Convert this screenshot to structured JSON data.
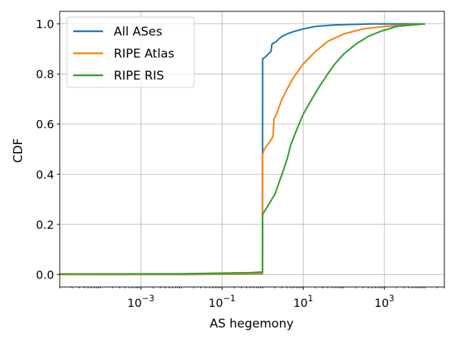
{
  "chart_data": {
    "type": "line",
    "xlabel": "AS hegemony",
    "ylabel": "CDF",
    "xscale": "log",
    "xlim": [
      1e-05,
      30000
    ],
    "ylim": [
      -0.05,
      1.05
    ],
    "x_ticks": [
      {
        "value": 0.001,
        "base": "10",
        "exp": "−3"
      },
      {
        "value": 0.1,
        "base": "10",
        "exp": "−1"
      },
      {
        "value": 10,
        "base": "10",
        "exp": "1"
      },
      {
        "value": 1000,
        "base": "10",
        "exp": "3"
      }
    ],
    "y_ticks": [
      {
        "value": 0.0,
        "label": "0.0"
      },
      {
        "value": 0.2,
        "label": "0.2"
      },
      {
        "value": 0.4,
        "label": "0.4"
      },
      {
        "value": 0.6,
        "label": "0.6"
      },
      {
        "value": 0.8,
        "label": "0.8"
      },
      {
        "value": 1.0,
        "label": "1.0"
      }
    ],
    "grid": true,
    "legend_position": "top-left",
    "series": [
      {
        "name": "All ASes",
        "color": "#1f77b4",
        "points": [
          [
            1e-05,
            0.0
          ],
          [
            0.01,
            0.0
          ],
          [
            0.5,
            0.002
          ],
          [
            0.99,
            0.003
          ],
          [
            1.0,
            0.86
          ],
          [
            1.2,
            0.87
          ],
          [
            1.6,
            0.89
          ],
          [
            1.7,
            0.92
          ],
          [
            2.2,
            0.93
          ],
          [
            2.5,
            0.94
          ],
          [
            3,
            0.95
          ],
          [
            4,
            0.96
          ],
          [
            6,
            0.97
          ],
          [
            10,
            0.98
          ],
          [
            20,
            0.99
          ],
          [
            50,
            0.995
          ],
          [
            150,
            0.998
          ],
          [
            500,
            1.0
          ],
          [
            10000,
            1.0
          ]
        ]
      },
      {
        "name": "RIPE Atlas",
        "color": "#ff7f0e",
        "points": [
          [
            1e-05,
            0.0
          ],
          [
            0.01,
            0.001
          ],
          [
            0.5,
            0.003
          ],
          [
            0.99,
            0.005
          ],
          [
            1.0,
            0.48
          ],
          [
            1.1,
            0.5
          ],
          [
            1.5,
            0.53
          ],
          [
            1.8,
            0.55
          ],
          [
            1.9,
            0.62
          ],
          [
            2.2,
            0.64
          ],
          [
            3,
            0.7
          ],
          [
            4,
            0.74
          ],
          [
            6,
            0.79
          ],
          [
            10,
            0.84
          ],
          [
            20,
            0.89
          ],
          [
            40,
            0.93
          ],
          [
            100,
            0.96
          ],
          [
            300,
            0.98
          ],
          [
            1000,
            0.99
          ],
          [
            3000,
            0.995
          ],
          [
            10000,
            1.0
          ]
        ]
      },
      {
        "name": "RIPE RIS",
        "color": "#2ca02c",
        "points": [
          [
            1e-05,
            0.002
          ],
          [
            0.01,
            0.003
          ],
          [
            0.5,
            0.007
          ],
          [
            0.99,
            0.01
          ],
          [
            1.0,
            0.24
          ],
          [
            1.3,
            0.27
          ],
          [
            2,
            0.32
          ],
          [
            3,
            0.4
          ],
          [
            4,
            0.46
          ],
          [
            5,
            0.52
          ],
          [
            7,
            0.58
          ],
          [
            10,
            0.64
          ],
          [
            15,
            0.69
          ],
          [
            25,
            0.75
          ],
          [
            40,
            0.8
          ],
          [
            60,
            0.84
          ],
          [
            100,
            0.88
          ],
          [
            200,
            0.92
          ],
          [
            400,
            0.95
          ],
          [
            800,
            0.97
          ],
          [
            2000,
            0.99
          ],
          [
            10000,
            1.0
          ]
        ]
      }
    ]
  }
}
